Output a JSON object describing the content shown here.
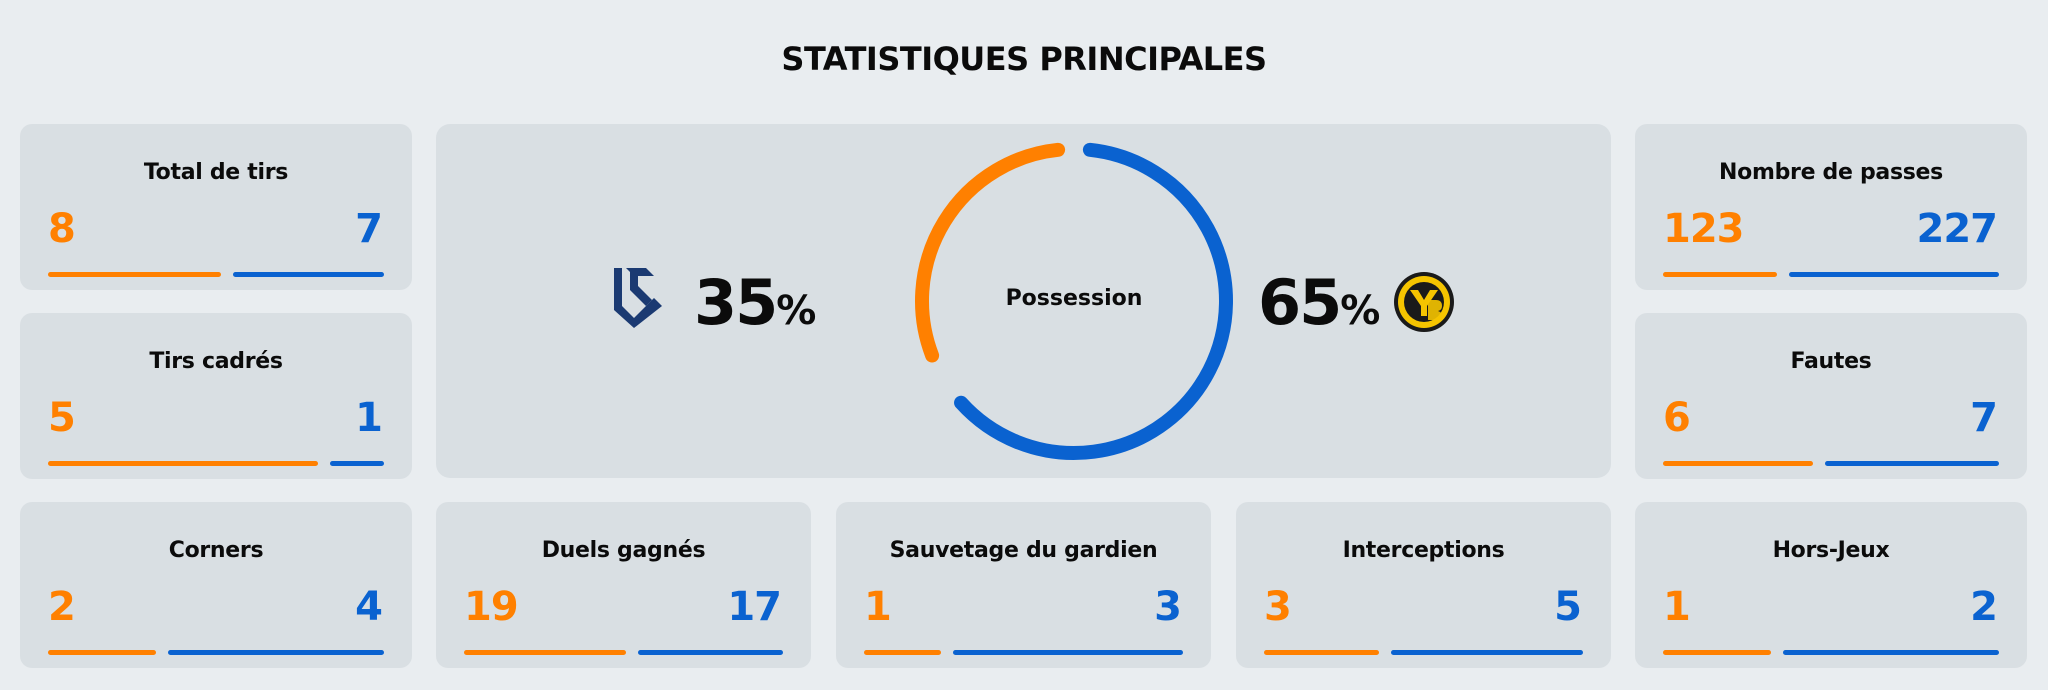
{
  "title": "STATISTIQUES PRINCIPALES",
  "colors": {
    "home": "#ff8000",
    "away": "#0a62d0",
    "card": "#d9dfe3",
    "bg": "#e9edf0"
  },
  "possession": {
    "label": "Possession",
    "home_value": "35",
    "away_value": "65",
    "unit": "%",
    "home_fraction": 0.35,
    "away_fraction": 0.65,
    "home_logo": "lausanne-sport-logo",
    "away_logo": "young-boys-logo"
  },
  "stats": [
    {
      "label": "Total de tirs",
      "home": "8",
      "away": "7"
    },
    {
      "label": "Tirs cadrés",
      "home": "5",
      "away": "1"
    },
    {
      "label": "Corners",
      "home": "2",
      "away": "4"
    },
    {
      "label": "Duels gagnés",
      "home": "19",
      "away": "17"
    },
    {
      "label": "Sauvetage du gardien",
      "home": "1",
      "away": "3"
    },
    {
      "label": "Interceptions",
      "home": "3",
      "away": "5"
    },
    {
      "label": "Hors-Jeux",
      "home": "1",
      "away": "2"
    },
    {
      "label": "Nombre de passes",
      "home": "123",
      "away": "227"
    },
    {
      "label": "Fautes",
      "home": "6",
      "away": "7"
    }
  ]
}
